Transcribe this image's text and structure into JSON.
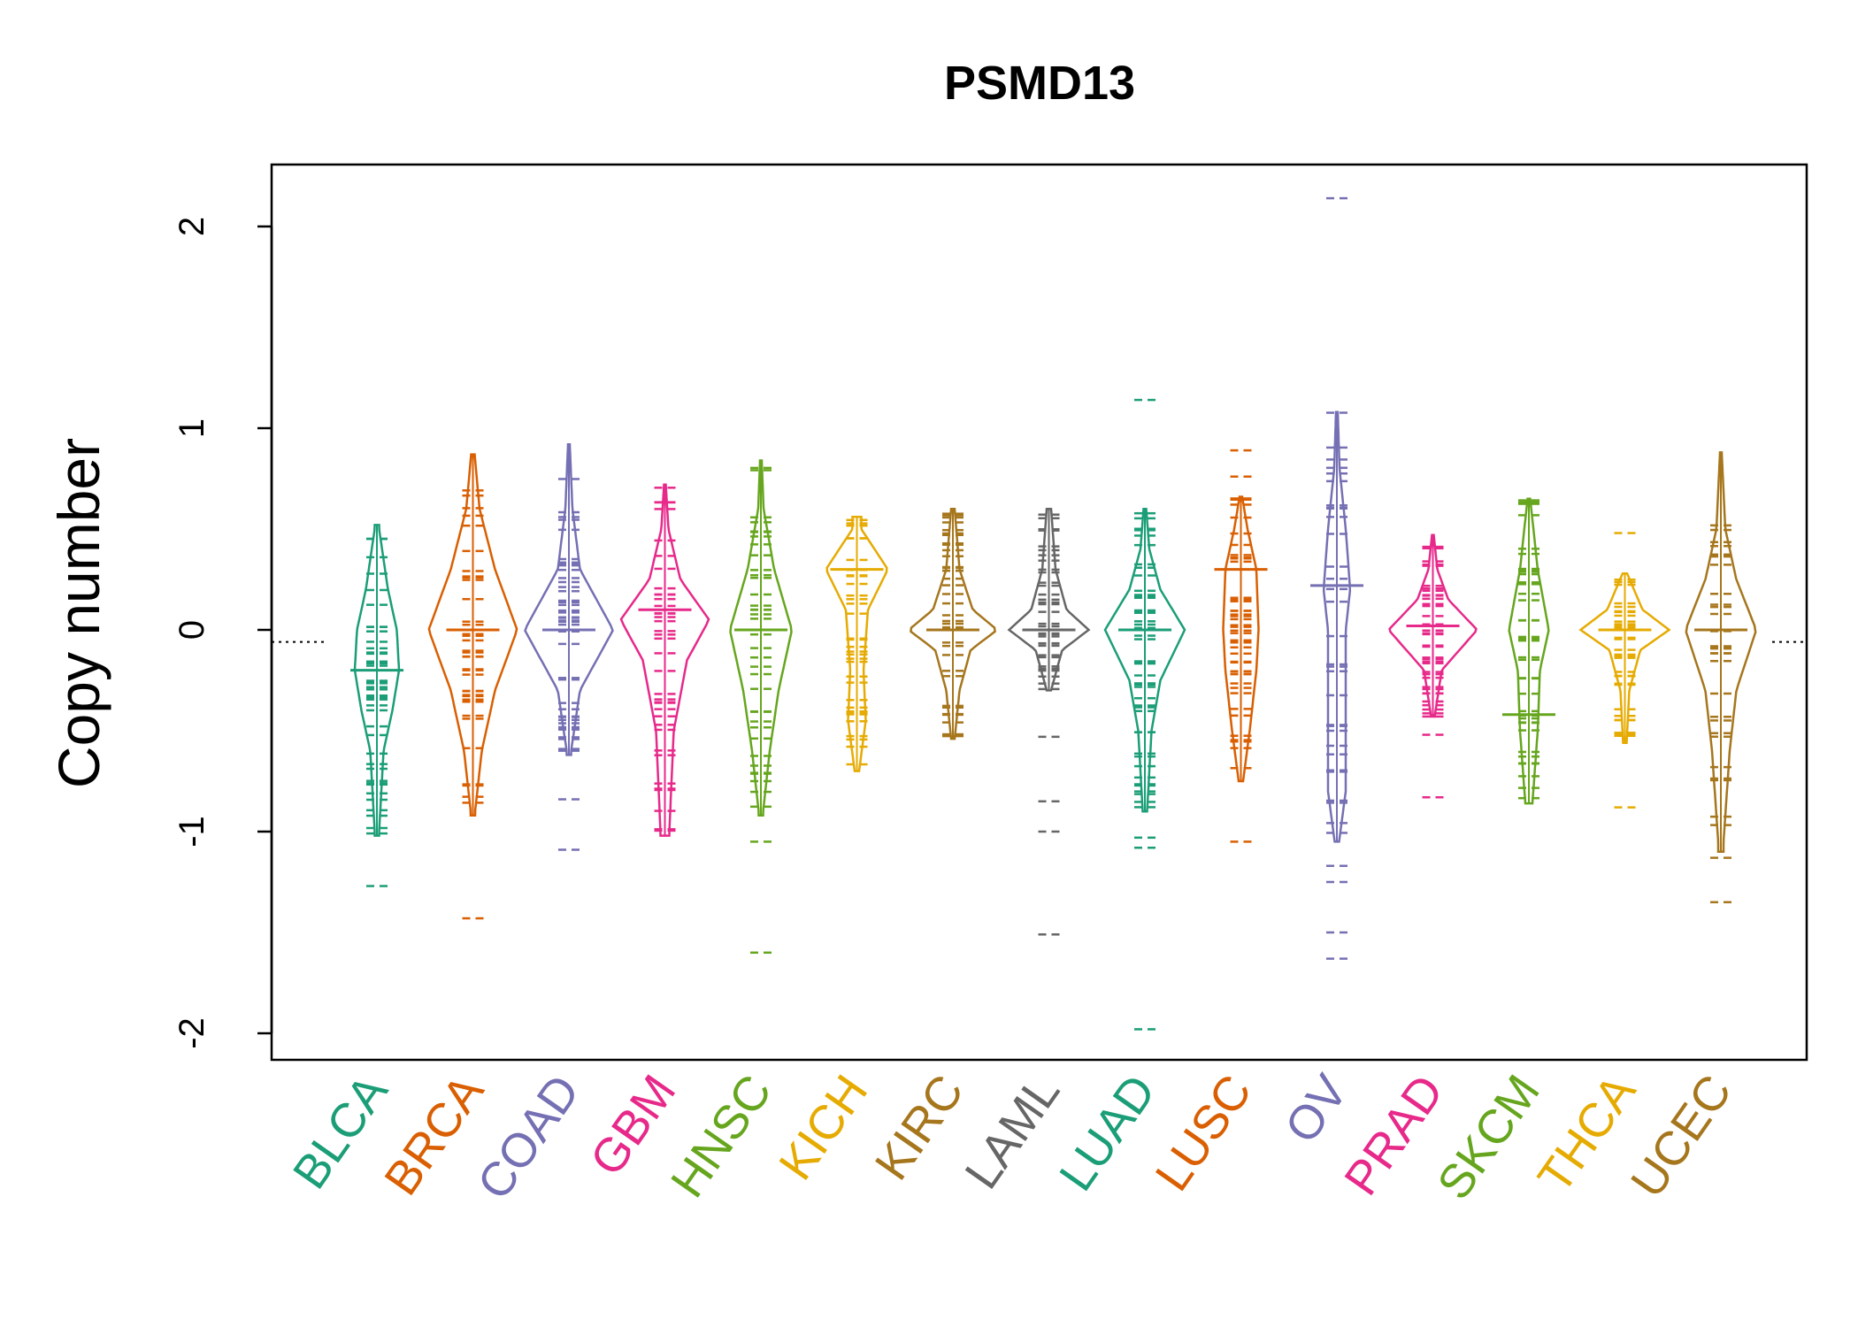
{
  "chart_data": {
    "type": "scatter",
    "subtype": "beanplot",
    "title": "PSMD13",
    "xlabel": "",
    "ylabel": "Copy number",
    "ylim": [
      -2.3,
      2.2
    ],
    "yticks": [
      "-2",
      "-1",
      "0",
      "1",
      "2"
    ],
    "ytick_values": [
      -2,
      -1,
      0,
      1,
      2
    ],
    "overall_mean": -0.06,
    "grid": false,
    "legend": "none",
    "series": [
      {
        "name": "BLCA",
        "color": "#1b9e77",
        "mean": -0.2,
        "min": -1.02,
        "max": 0.52,
        "outliers": [
          -1.27
        ],
        "shape": [
          [
            -1.0,
            0.05
          ],
          [
            -0.6,
            0.15
          ],
          [
            -0.4,
            0.35
          ],
          [
            -0.2,
            0.5
          ],
          [
            0.0,
            0.45
          ],
          [
            0.2,
            0.25
          ],
          [
            0.5,
            0.05
          ]
        ]
      },
      {
        "name": "BRCA",
        "color": "#d95f02",
        "mean": 0.0,
        "min": -0.92,
        "max": 0.87,
        "outliers": [
          -1.43
        ],
        "shape": [
          [
            -0.9,
            0.05
          ],
          [
            -0.6,
            0.2
          ],
          [
            -0.3,
            0.5
          ],
          [
            0.0,
            1.0
          ],
          [
            0.3,
            0.5
          ],
          [
            0.6,
            0.15
          ],
          [
            0.87,
            0.04
          ]
        ]
      },
      {
        "name": "COAD",
        "color": "#7570b3",
        "mean": 0.0,
        "min": -0.62,
        "max": 0.92,
        "outliers": [
          -0.84,
          -1.09
        ],
        "shape": [
          [
            -0.6,
            0.05
          ],
          [
            -0.3,
            0.25
          ],
          [
            0.0,
            1.0
          ],
          [
            0.3,
            0.25
          ],
          [
            0.6,
            0.08
          ],
          [
            0.92,
            0.02
          ]
        ]
      },
      {
        "name": "GBM",
        "color": "#e7298a",
        "mean": 0.1,
        "min": -1.02,
        "max": 0.72,
        "outliers": [],
        "shape": [
          [
            -1.0,
            0.1
          ],
          [
            -0.5,
            0.2
          ],
          [
            -0.15,
            0.5
          ],
          [
            0.05,
            1.0
          ],
          [
            0.25,
            0.35
          ],
          [
            0.5,
            0.08
          ],
          [
            0.72,
            0.02
          ]
        ]
      },
      {
        "name": "HNSC",
        "color": "#66a61e",
        "mean": 0.0,
        "min": -0.92,
        "max": 0.84,
        "outliers": [
          -1.05,
          -1.6
        ],
        "shape": [
          [
            -0.9,
            0.05
          ],
          [
            -0.6,
            0.2
          ],
          [
            -0.3,
            0.4
          ],
          [
            0.0,
            0.7
          ],
          [
            0.3,
            0.3
          ],
          [
            0.6,
            0.06
          ],
          [
            0.84,
            0.02
          ]
        ]
      },
      {
        "name": "KICH",
        "color": "#e6ab02",
        "mean": 0.3,
        "min": -0.7,
        "max": 0.56,
        "outliers": [],
        "shape": [
          [
            -0.7,
            0.05
          ],
          [
            -0.45,
            0.2
          ],
          [
            -0.2,
            0.15
          ],
          [
            0.1,
            0.25
          ],
          [
            0.3,
            0.7
          ],
          [
            0.5,
            0.1
          ]
        ]
      },
      {
        "name": "KIRC",
        "color": "#a6761d",
        "mean": 0.0,
        "min": -0.54,
        "max": 0.6,
        "outliers": [],
        "shape": [
          [
            -0.54,
            0.04
          ],
          [
            -0.3,
            0.15
          ],
          [
            -0.1,
            0.4
          ],
          [
            0.0,
            1.0
          ],
          [
            0.1,
            0.45
          ],
          [
            0.3,
            0.15
          ],
          [
            0.6,
            0.04
          ]
        ]
      },
      {
        "name": "LAML",
        "color": "#666666",
        "mean": 0.0,
        "min": -0.3,
        "max": 0.6,
        "outliers": [
          -0.53,
          -0.85,
          -1.0,
          -1.51
        ],
        "shape": [
          [
            -0.3,
            0.05
          ],
          [
            -0.1,
            0.3
          ],
          [
            0.0,
            0.9
          ],
          [
            0.1,
            0.4
          ],
          [
            0.3,
            0.15
          ],
          [
            0.6,
            0.05
          ]
        ]
      },
      {
        "name": "LUAD",
        "color": "#1b9e77",
        "mean": 0.0,
        "min": -0.9,
        "max": 0.6,
        "outliers": [
          -1.03,
          -1.08,
          -1.98,
          1.14
        ],
        "shape": [
          [
            -0.9,
            0.05
          ],
          [
            -0.5,
            0.15
          ],
          [
            -0.25,
            0.35
          ],
          [
            0.0,
            0.9
          ],
          [
            0.2,
            0.35
          ],
          [
            0.4,
            0.1
          ],
          [
            0.6,
            0.03
          ]
        ]
      },
      {
        "name": "LUSC",
        "color": "#d95f02",
        "mean": 0.3,
        "min": -0.75,
        "max": 0.66,
        "outliers": [
          -1.05,
          0.76,
          0.89
        ],
        "shape": [
          [
            -0.75,
            0.05
          ],
          [
            -0.5,
            0.2
          ],
          [
            -0.2,
            0.35
          ],
          [
            0.0,
            0.4
          ],
          [
            0.3,
            0.35
          ],
          [
            0.5,
            0.15
          ],
          [
            0.66,
            0.03
          ]
        ]
      },
      {
        "name": "OV",
        "color": "#7570b3",
        "mean": 0.22,
        "min": -1.05,
        "max": 1.08,
        "outliers": [
          -1.17,
          -1.25,
          -1.5,
          -1.63,
          2.14
        ],
        "shape": [
          [
            -1.05,
            0.05
          ],
          [
            -0.8,
            0.2
          ],
          [
            -0.4,
            0.2
          ],
          [
            0.0,
            0.2
          ],
          [
            0.2,
            0.3
          ],
          [
            0.5,
            0.2
          ],
          [
            0.8,
            0.06
          ],
          [
            1.08,
            0.02
          ]
        ]
      },
      {
        "name": "PRAD",
        "color": "#e7298a",
        "mean": 0.02,
        "min": -0.43,
        "max": 0.47,
        "outliers": [
          -0.52,
          -0.83
        ],
        "shape": [
          [
            -0.43,
            0.04
          ],
          [
            -0.2,
            0.2
          ],
          [
            0.0,
            1.0
          ],
          [
            0.15,
            0.35
          ],
          [
            0.3,
            0.1
          ],
          [
            0.47,
            0.02
          ]
        ]
      },
      {
        "name": "SKCM",
        "color": "#66a61e",
        "mean": -0.42,
        "min": -0.86,
        "max": 0.65,
        "outliers": [],
        "shape": [
          [
            -0.86,
            0.08
          ],
          [
            -0.5,
            0.2
          ],
          [
            -0.2,
            0.25
          ],
          [
            0.0,
            0.45
          ],
          [
            0.3,
            0.2
          ],
          [
            0.65,
            0.03
          ]
        ]
      },
      {
        "name": "THCA",
        "color": "#e6ab02",
        "mean": 0.0,
        "min": -0.56,
        "max": 0.28,
        "outliers": [
          -0.88,
          0.48
        ],
        "shape": [
          [
            -0.56,
            0.04
          ],
          [
            -0.3,
            0.1
          ],
          [
            -0.1,
            0.35
          ],
          [
            0.0,
            1.0
          ],
          [
            0.1,
            0.4
          ],
          [
            0.28,
            0.05
          ]
        ]
      },
      {
        "name": "UCEC",
        "color": "#a6761d",
        "mean": 0.0,
        "min": -1.1,
        "max": 0.88,
        "outliers": [
          -1.13,
          -1.35
        ],
        "shape": [
          [
            -1.05,
            0.06
          ],
          [
            -0.6,
            0.2
          ],
          [
            -0.3,
            0.35
          ],
          [
            0.0,
            0.8
          ],
          [
            0.25,
            0.35
          ],
          [
            0.5,
            0.1
          ],
          [
            0.88,
            0.02
          ]
        ]
      }
    ]
  }
}
